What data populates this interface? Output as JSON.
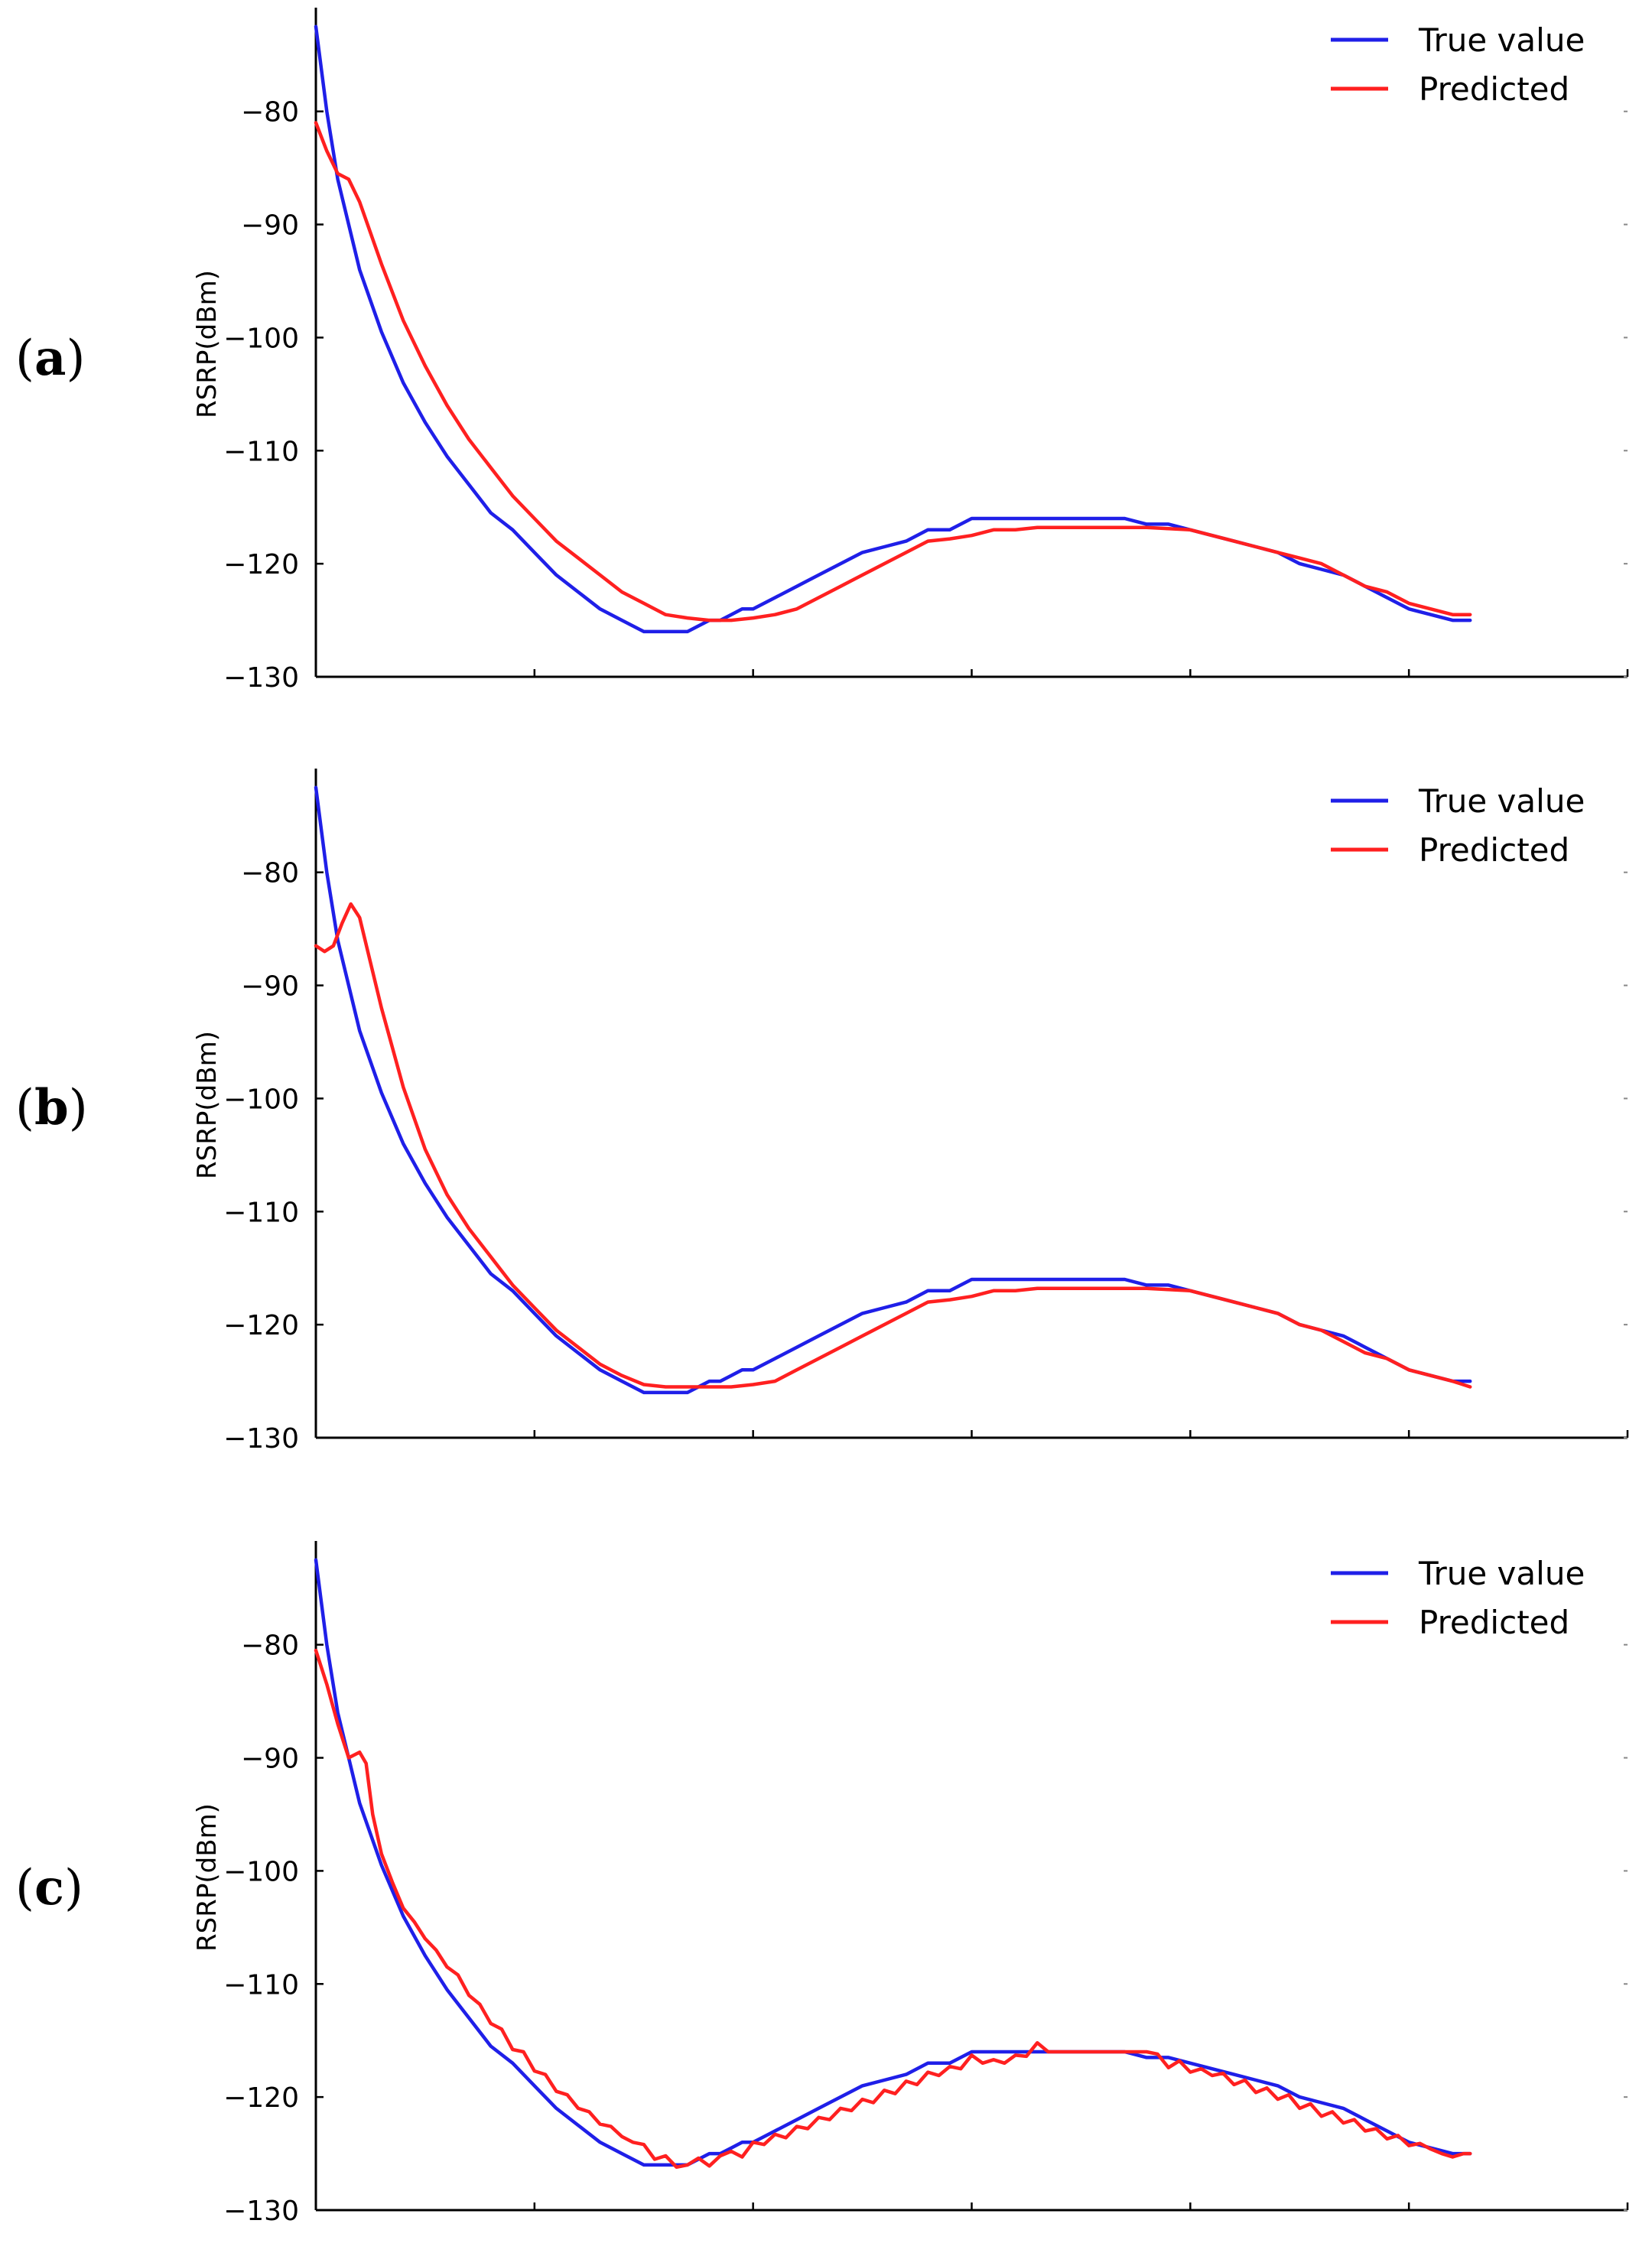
{
  "chart_data": [
    {
      "type": "line",
      "panel_label": "a",
      "title": "",
      "xlabel": "",
      "ylabel": "RSRP(dBm)",
      "ylim": [
        -130,
        -71.5
      ],
      "xlim": [
        0,
        600
      ],
      "yticks": [
        -80,
        -90,
        -100,
        -110,
        -120,
        -130
      ],
      "ytick_labels": [
        "−80",
        "−90",
        "−100",
        "−110",
        "−120",
        "−130"
      ],
      "xticks": [
        0,
        100,
        200,
        300,
        400,
        500,
        600
      ],
      "grid": false,
      "legend_position": "top-right",
      "series": [
        {
          "name": "True value",
          "color": "#1f1fe8",
          "x": [
            0,
            5,
            10,
            20,
            30,
            40,
            50,
            60,
            70,
            80,
            90,
            100,
            110,
            120,
            130,
            140,
            150,
            160,
            170,
            175,
            180,
            185,
            190,
            195,
            200,
            210,
            220,
            230,
            240,
            250,
            260,
            270,
            280,
            290,
            300,
            310,
            320,
            330,
            340,
            350,
            360,
            370,
            380,
            390,
            400,
            410,
            420,
            430,
            440,
            450,
            460,
            470,
            480,
            490,
            500,
            510,
            520,
            528
          ],
          "y": [
            -72.5,
            -80,
            -86,
            -94,
            -99.5,
            -104,
            -107.5,
            -110.5,
            -113,
            -115.5,
            -117,
            -119,
            -121,
            -122.5,
            -124,
            -125,
            -126,
            -126,
            -126,
            -125.5,
            -125,
            -125,
            -124.5,
            -124,
            -124,
            -123,
            -122,
            -121,
            -120,
            -119,
            -118.5,
            -118,
            -117,
            -117,
            -116,
            -116,
            -116,
            -116,
            -116,
            -116,
            -116,
            -116,
            -116.5,
            -116.5,
            -117,
            -117.5,
            -118,
            -118.5,
            -119,
            -120,
            -120.5,
            -121,
            -122,
            -123,
            -124,
            -124.5,
            -125,
            -125
          ]
        },
        {
          "name": "Predicted",
          "color": "#ff2020",
          "x": [
            0,
            5,
            10,
            15,
            20,
            30,
            40,
            50,
            60,
            70,
            80,
            90,
            100,
            110,
            120,
            130,
            140,
            150,
            160,
            170,
            180,
            190,
            200,
            210,
            220,
            230,
            240,
            250,
            260,
            270,
            280,
            290,
            300,
            310,
            320,
            330,
            340,
            350,
            360,
            370,
            380,
            390,
            400,
            410,
            420,
            430,
            440,
            450,
            460,
            470,
            480,
            490,
            500,
            510,
            520,
            528
          ],
          "y": [
            -81,
            -83.5,
            -85.5,
            -86,
            -88,
            -93.5,
            -98.5,
            -102.5,
            -106,
            -109,
            -111.5,
            -114,
            -116,
            -118,
            -119.5,
            -121,
            -122.5,
            -123.5,
            -124.5,
            -124.8,
            -125,
            -125,
            -124.8,
            -124.5,
            -124,
            -123,
            -122,
            -121,
            -120,
            -119,
            -118,
            -117.8,
            -117.5,
            -117,
            -117,
            -116.8,
            -116.8,
            -116.8,
            -116.8,
            -116.8,
            -116.8,
            -116.9,
            -117,
            -117.5,
            -118,
            -118.5,
            -119,
            -119.5,
            -120,
            -121,
            -122,
            -122.5,
            -123.5,
            -124,
            -124.5,
            -124.5
          ]
        }
      ]
    },
    {
      "type": "line",
      "panel_label": "b",
      "title": "",
      "xlabel": "",
      "ylabel": "RSRP(dBm)",
      "ylim": [
        -130,
        -71.5
      ],
      "xlim": [
        0,
        600
      ],
      "yticks": [
        -80,
        -90,
        -100,
        -110,
        -120,
        -130
      ],
      "ytick_labels": [
        "−80",
        "−90",
        "−100",
        "−110",
        "−120",
        "−130"
      ],
      "xticks": [
        0,
        100,
        200,
        300,
        400,
        500,
        600
      ],
      "grid": false,
      "legend_position": "top-right",
      "series": [
        {
          "name": "True value",
          "color": "#1f1fe8",
          "x": [
            0,
            5,
            10,
            20,
            30,
            40,
            50,
            60,
            70,
            80,
            90,
            100,
            110,
            120,
            130,
            140,
            150,
            160,
            170,
            175,
            180,
            185,
            190,
            195,
            200,
            210,
            220,
            230,
            240,
            250,
            260,
            270,
            280,
            290,
            300,
            310,
            320,
            330,
            340,
            350,
            360,
            370,
            380,
            390,
            400,
            410,
            420,
            430,
            440,
            450,
            460,
            470,
            480,
            490,
            500,
            510,
            520,
            528
          ],
          "y": [
            -72.5,
            -80,
            -86,
            -94,
            -99.5,
            -104,
            -107.5,
            -110.5,
            -113,
            -115.5,
            -117,
            -119,
            -121,
            -122.5,
            -124,
            -125,
            -126,
            -126,
            -126,
            -125.5,
            -125,
            -125,
            -124.5,
            -124,
            -124,
            -123,
            -122,
            -121,
            -120,
            -119,
            -118.5,
            -118,
            -117,
            -117,
            -116,
            -116,
            -116,
            -116,
            -116,
            -116,
            -116,
            -116,
            -116.5,
            -116.5,
            -117,
            -117.5,
            -118,
            -118.5,
            -119,
            -120,
            -120.5,
            -121,
            -122,
            -123,
            -124,
            -124.5,
            -125,
            -125
          ]
        },
        {
          "name": "Predicted",
          "color": "#ff2020",
          "x": [
            0,
            4,
            8,
            12,
            16,
            20,
            25,
            30,
            40,
            50,
            60,
            70,
            80,
            90,
            100,
            110,
            120,
            130,
            140,
            150,
            160,
            170,
            180,
            190,
            200,
            210,
            220,
            230,
            240,
            250,
            260,
            270,
            280,
            290,
            300,
            310,
            320,
            330,
            340,
            350,
            360,
            370,
            380,
            390,
            400,
            410,
            420,
            430,
            440,
            450,
            460,
            470,
            480,
            490,
            500,
            510,
            520,
            528
          ],
          "y": [
            -86.5,
            -87,
            -86.5,
            -84.5,
            -82.8,
            -84,
            -88,
            -92,
            -99,
            -104.5,
            -108.5,
            -111.5,
            -114,
            -116.5,
            -118.5,
            -120.5,
            -122,
            -123.5,
            -124.5,
            -125.3,
            -125.5,
            -125.5,
            -125.5,
            -125.5,
            -125.3,
            -125,
            -124,
            -123,
            -122,
            -121,
            -120,
            -119,
            -118,
            -117.8,
            -117.5,
            -117,
            -117,
            -116.8,
            -116.8,
            -116.8,
            -116.8,
            -116.8,
            -116.8,
            -116.9,
            -117,
            -117.5,
            -118,
            -118.5,
            -119,
            -120,
            -120.5,
            -121.5,
            -122.5,
            -123,
            -124,
            -124.5,
            -125,
            -125.5
          ]
        }
      ]
    },
    {
      "type": "line",
      "panel_label": "c",
      "title": "",
      "xlabel": "",
      "ylabel": "RSRP(dBm)",
      "ylim": [
        -130,
        -71.5
      ],
      "xlim": [
        0,
        600
      ],
      "yticks": [
        -80,
        -90,
        -100,
        -110,
        -120,
        -130
      ],
      "ytick_labels": [
        "−80",
        "−90",
        "−100",
        "−110",
        "−120",
        "−130"
      ],
      "xticks": [
        0,
        100,
        200,
        300,
        400,
        500,
        600
      ],
      "grid": false,
      "legend_position": "top-right",
      "series": [
        {
          "name": "True value",
          "color": "#1f1fe8",
          "x": [
            0,
            5,
            10,
            20,
            30,
            40,
            50,
            60,
            70,
            80,
            90,
            100,
            110,
            120,
            130,
            140,
            150,
            160,
            170,
            175,
            180,
            185,
            190,
            195,
            200,
            210,
            220,
            230,
            240,
            250,
            260,
            270,
            280,
            290,
            300,
            310,
            320,
            330,
            340,
            350,
            360,
            370,
            380,
            390,
            400,
            410,
            420,
            430,
            440,
            450,
            460,
            470,
            480,
            490,
            500,
            510,
            520,
            528
          ],
          "y": [
            -72.5,
            -80,
            -86,
            -94,
            -99.5,
            -104,
            -107.5,
            -110.5,
            -113,
            -115.5,
            -117,
            -119,
            -121,
            -122.5,
            -124,
            -125,
            -126,
            -126,
            -126,
            -125.5,
            -125,
            -125,
            -124.5,
            -124,
            -124,
            -123,
            -122,
            -121,
            -120,
            -119,
            -118.5,
            -118,
            -117,
            -117,
            -116,
            -116,
            -116,
            -116,
            -116,
            -116,
            -116,
            -116,
            -116.5,
            -116.5,
            -117,
            -117.5,
            -118,
            -118.5,
            -119,
            -120,
            -120.5,
            -121,
            -122,
            -123,
            -124,
            -124.5,
            -125,
            -125
          ]
        },
        {
          "name": "Predicted",
          "color": "#ff2020",
          "x": [
            0,
            5,
            10,
            15,
            20,
            23,
            26,
            30,
            35,
            40,
            45,
            50,
            55,
            60,
            65,
            70,
            75,
            80,
            85,
            90,
            95,
            100,
            105,
            110,
            115,
            120,
            125,
            130,
            135,
            140,
            145,
            150,
            155,
            160,
            165,
            170,
            175,
            180,
            185,
            190,
            195,
            200,
            205,
            210,
            215,
            220,
            225,
            230,
            235,
            240,
            245,
            250,
            255,
            260,
            265,
            270,
            275,
            280,
            285,
            290,
            295,
            300,
            305,
            310,
            315,
            320,
            325,
            330,
            335,
            340,
            345,
            350,
            355,
            360,
            365,
            370,
            375,
            380,
            385,
            390,
            395,
            400,
            405,
            410,
            415,
            420,
            425,
            430,
            435,
            440,
            445,
            450,
            455,
            460,
            465,
            470,
            475,
            480,
            485,
            490,
            495,
            500,
            505,
            510,
            515,
            520,
            525,
            528
          ],
          "y": [
            -80.5,
            -83.5,
            -87,
            -90,
            -89.5,
            -90.5,
            -95,
            -98.5,
            -101,
            -103.3,
            -104.5,
            -106,
            -107,
            -108.5,
            -109.2,
            -111,
            -111.8,
            -113.5,
            -114,
            -115.8,
            -116,
            -117.7,
            -118,
            -119.5,
            -119.8,
            -121,
            -121.3,
            -122.4,
            -122.6,
            -123.5,
            -124,
            -124.2,
            -125.5,
            -125.2,
            -126.2,
            -126,
            -125.4,
            -126.1,
            -125.2,
            -124.8,
            -125.3,
            -124,
            -124.2,
            -123.3,
            -123.6,
            -122.6,
            -122.8,
            -121.8,
            -122,
            -121,
            -121.2,
            -120.2,
            -120.5,
            -119.4,
            -119.7,
            -118.6,
            -118.9,
            -117.8,
            -118.1,
            -117.3,
            -117.5,
            -116.3,
            -117,
            -116.7,
            -117,
            -116.3,
            -116.4,
            -115.2,
            -116,
            -116,
            -116,
            -116,
            -116,
            -116,
            -116,
            -116,
            -116,
            -116,
            -116.2,
            -117.4,
            -116.8,
            -117.8,
            -117.5,
            -118.1,
            -117.9,
            -118.9,
            -118.5,
            -119.6,
            -119.2,
            -120.2,
            -119.8,
            -121,
            -120.6,
            -121.7,
            -121.3,
            -122.3,
            -122,
            -123,
            -122.8,
            -123.7,
            -123.4,
            -124.3,
            -124.1,
            -124.6,
            -125,
            -125.3,
            -125,
            -125
          ]
        }
      ]
    }
  ]
}
